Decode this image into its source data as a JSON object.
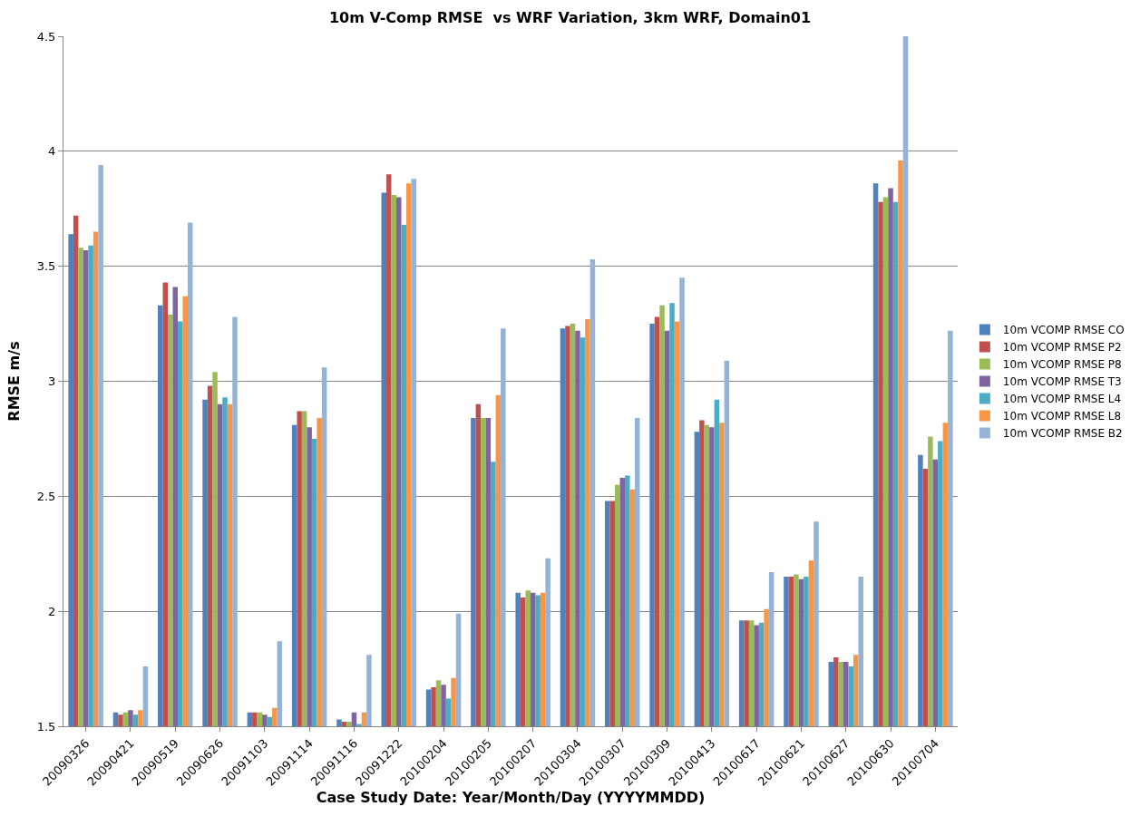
{
  "chart_data": {
    "type": "bar",
    "title": "10m V-Comp RMSE  vs WRF Variation, 3km WRF, Domain01",
    "xlabel": "Case Study Date: Year/Month/Day (YYYYMMDD)",
    "ylabel": "RMSE m/s",
    "categories": [
      "20090326",
      "20090421",
      "20090519",
      "20090626",
      "20091103",
      "20091114",
      "20091116",
      "20091222",
      "20100204",
      "20100205",
      "20100207",
      "20100304",
      "20100307",
      "20100309",
      "20100413",
      "20100617",
      "20100621",
      "20100627",
      "20100630",
      "20100704"
    ],
    "series": [
      {
        "name": "10m VCOMP RMSE CO",
        "color": "#4f81bd",
        "values": [
          3.64,
          1.56,
          3.33,
          2.92,
          1.56,
          2.81,
          1.53,
          3.82,
          1.66,
          2.84,
          2.08,
          3.23,
          2.48,
          3.25,
          2.78,
          1.96,
          2.15,
          1.78,
          3.86,
          2.68
        ]
      },
      {
        "name": "10m VCOMP RMSE P2",
        "color": "#c0504d",
        "values": [
          3.72,
          1.55,
          3.43,
          2.98,
          1.56,
          2.87,
          1.52,
          3.9,
          1.67,
          2.9,
          2.06,
          3.24,
          2.48,
          3.28,
          2.83,
          1.96,
          2.15,
          1.8,
          3.78,
          2.62
        ]
      },
      {
        "name": "10m VCOMP RMSE P8",
        "color": "#9bbb59",
        "values": [
          3.58,
          1.56,
          3.29,
          3.04,
          1.56,
          2.87,
          1.52,
          3.81,
          1.7,
          2.84,
          2.09,
          3.25,
          2.55,
          3.33,
          2.81,
          1.96,
          2.16,
          1.78,
          3.8,
          2.76
        ]
      },
      {
        "name": "10m VCOMP RMSE T3",
        "color": "#8064a2",
        "values": [
          3.57,
          1.57,
          3.41,
          2.9,
          1.55,
          2.8,
          1.56,
          3.8,
          1.68,
          2.84,
          2.08,
          3.22,
          2.58,
          3.22,
          2.8,
          1.94,
          2.14,
          1.78,
          3.84,
          2.66
        ]
      },
      {
        "name": "10m VCOMP RMSE L4",
        "color": "#4bacc6",
        "values": [
          3.59,
          1.55,
          3.26,
          2.93,
          1.54,
          2.75,
          1.51,
          3.68,
          1.62,
          2.65,
          2.07,
          3.19,
          2.59,
          3.34,
          2.92,
          1.95,
          2.15,
          1.76,
          3.78,
          2.74
        ]
      },
      {
        "name": "10m VCOMP RMSE L8",
        "color": "#f79646",
        "values": [
          3.65,
          1.57,
          3.37,
          2.9,
          1.58,
          2.84,
          1.56,
          3.86,
          1.71,
          2.94,
          2.08,
          3.27,
          2.53,
          3.26,
          2.82,
          2.01,
          2.22,
          1.81,
          3.96,
          2.82
        ]
      },
      {
        "name": "10m VCOMP RMSE B2",
        "color": "#95b3d7",
        "values": [
          3.94,
          1.76,
          3.69,
          3.28,
          1.87,
          3.06,
          1.81,
          3.88,
          1.99,
          3.23,
          2.23,
          3.53,
          2.84,
          3.45,
          3.09,
          2.17,
          2.39,
          2.15,
          4.5,
          3.22
        ]
      }
    ],
    "ylim": [
      1.5,
      4.5
    ],
    "yticks": [
      1.5,
      2,
      2.5,
      3,
      3.5,
      4,
      4.5
    ],
    "grid": "y",
    "legend": "right"
  }
}
